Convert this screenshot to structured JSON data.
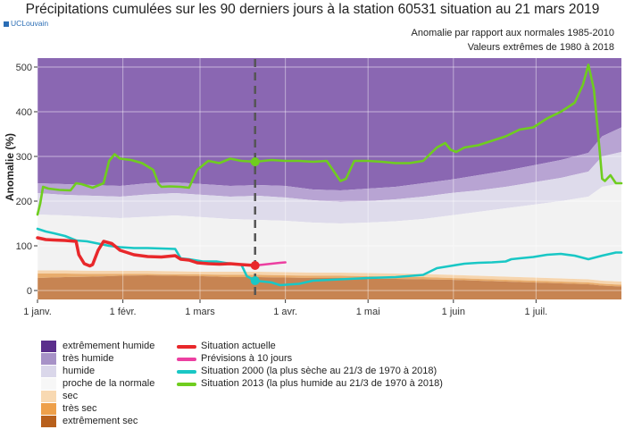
{
  "header": {
    "title": "Précipitations cumulées sur les 90 derniers jours à la station 60531 situation au 21 mars 2019",
    "logo": "UCLouvain",
    "subtitle1": "Anomalie par rapport aux normales 1985-2010",
    "subtitle2": "Valeurs extrêmes de 1980 à 2018"
  },
  "colors": {
    "extremement_humide": "#8a67b2",
    "tres_humide": "#b8a4d3",
    "humide": "#dedbeb",
    "proche": "#f2f2f2",
    "sec": "#f6d5ae",
    "tres_sec": "#e8ac6c",
    "extremement_sec": "#c78452",
    "actuelle": "#e8282b",
    "previsions": "#ec3fa1",
    "s2000": "#19c7c5",
    "s2013": "#6fcd1f",
    "marker_line": "#555555"
  },
  "legend": {
    "bands": [
      {
        "label": "extrêmement humide",
        "color": "#5b2f8c"
      },
      {
        "label": "très humide",
        "color": "#a792c7"
      },
      {
        "label": "humide",
        "color": "#dad7ea"
      },
      {
        "label": "proche de la normale",
        "color": "#f7f7f7"
      },
      {
        "label": "sec",
        "color": "#f8d9b2"
      },
      {
        "label": "très sec",
        "color": "#eea04a"
      },
      {
        "label": "extrêmement sec",
        "color": "#b8601c"
      }
    ],
    "lines": [
      {
        "label": "Situation actuelle",
        "color": "#e8282b"
      },
      {
        "label": "Prévisions à 10 jours",
        "color": "#ec3fa1"
      },
      {
        "label": "Situation 2000 (la plus sèche au 21/3 de 1970 à 2018)",
        "color": "#19c7c5"
      },
      {
        "label": "Situation 2013 (la plus humide au 21/3 de 1970 à 2018)",
        "color": "#6fcd1f"
      }
    ]
  },
  "chart_data": {
    "type": "line",
    "ylabel": "Anomalie (%)",
    "xlim": [
      0,
      212
    ],
    "ylim": [
      -20,
      530
    ],
    "y_ticks": [
      0,
      100,
      200,
      300,
      400,
      500
    ],
    "x_ticks": [
      {
        "day": 0,
        "label": "1 janv."
      },
      {
        "day": 31,
        "label": "1 févr."
      },
      {
        "day": 59,
        "label": "1 mars"
      },
      {
        "day": 90,
        "label": "1 avr."
      },
      {
        "day": 120,
        "label": "1 mai"
      },
      {
        "day": 151,
        "label": "1 juin"
      },
      {
        "day": 181,
        "label": "1 juil."
      }
    ],
    "current_day": 79,
    "bands": {
      "days": [
        0,
        10,
        20,
        30,
        40,
        50,
        60,
        70,
        80,
        90,
        100,
        110,
        120,
        130,
        140,
        150,
        160,
        170,
        180,
        190,
        200,
        205,
        212
      ],
      "max": [
        520,
        520,
        520,
        520,
        520,
        520,
        520,
        520,
        520,
        520,
        520,
        520,
        520,
        520,
        520,
        520,
        520,
        520,
        520,
        520,
        520,
        520,
        520
      ],
      "very_wet": [
        240,
        238,
        236,
        234,
        240,
        242,
        238,
        234,
        236,
        234,
        226,
        224,
        228,
        232,
        240,
        248,
        258,
        268,
        280,
        292,
        308,
        345,
        365
      ],
      "wet": [
        218,
        214,
        212,
        210,
        215,
        218,
        214,
        210,
        212,
        208,
        202,
        198,
        200,
        204,
        210,
        218,
        224,
        232,
        242,
        252,
        266,
        300,
        310
      ],
      "near": [
        170,
        168,
        165,
        162,
        165,
        168,
        164,
        160,
        158,
        156,
        152,
        150,
        152,
        155,
        160,
        168,
        176,
        184,
        192,
        200,
        210,
        232,
        240
      ],
      "dry": [
        45,
        45,
        44,
        44,
        44,
        43,
        42,
        42,
        42,
        41,
        40,
        40,
        39,
        38,
        37,
        35,
        33,
        31,
        29,
        27,
        25,
        22,
        20
      ],
      "very_dry": [
        38,
        38,
        37,
        37,
        37,
        36,
        36,
        35,
        35,
        34,
        33,
        33,
        32,
        31,
        30,
        28,
        26,
        24,
        22,
        20,
        18,
        15,
        13
      ],
      "extremely_dry": [
        28,
        30,
        31,
        33,
        34,
        33,
        32,
        30,
        30,
        29,
        28,
        28,
        27,
        26,
        25,
        24,
        22,
        20,
        18,
        16,
        14,
        11,
        9
      ]
    },
    "series": [
      {
        "name": "Situation actuelle",
        "x": [
          0,
          3,
          6,
          10,
          14,
          15,
          17,
          19,
          20,
          22,
          24,
          27,
          30,
          35,
          40,
          45,
          50,
          52,
          55,
          58,
          62,
          66,
          70,
          74,
          79
        ],
        "y": [
          118,
          114,
          113,
          112,
          110,
          80,
          60,
          55,
          58,
          90,
          110,
          105,
          90,
          80,
          76,
          75,
          78,
          70,
          68,
          62,
          60,
          59,
          60,
          58,
          56
        ]
      },
      {
        "name": "Prévisions à 10 jours",
        "x": [
          79,
          82,
          85,
          88,
          90
        ],
        "y": [
          56,
          58,
          60,
          62,
          63
        ]
      },
      {
        "name": "Situation 2000",
        "x": [
          0,
          3,
          6,
          10,
          14,
          18,
          22,
          26,
          30,
          35,
          40,
          45,
          50,
          52,
          55,
          60,
          65,
          70,
          74,
          76,
          79,
          85,
          88,
          95,
          100,
          110,
          120,
          130,
          140,
          145,
          150,
          155,
          160,
          165,
          170,
          172,
          175,
          180,
          185,
          190,
          195,
          200,
          205,
          210,
          212
        ],
        "y": [
          138,
          132,
          128,
          122,
          112,
          110,
          105,
          100,
          97,
          95,
          95,
          94,
          93,
          72,
          70,
          65,
          65,
          60,
          58,
          32,
          22,
          18,
          12,
          15,
          22,
          25,
          28,
          30,
          35,
          50,
          55,
          60,
          62,
          63,
          65,
          70,
          72,
          75,
          80,
          82,
          78,
          70,
          78,
          85,
          85
        ]
      },
      {
        "name": "Situation 2013",
        "x": [
          0,
          1,
          2,
          4,
          8,
          12,
          14,
          16,
          20,
          24,
          26,
          28,
          30,
          34,
          38,
          42,
          44,
          45,
          48,
          52,
          55,
          58,
          62,
          66,
          70,
          74,
          79,
          85,
          90,
          95,
          100,
          105,
          110,
          112,
          115,
          120,
          125,
          130,
          135,
          140,
          145,
          148,
          150,
          152,
          155,
          160,
          165,
          170,
          175,
          180,
          185,
          190,
          195,
          198,
          200,
          202,
          204,
          205,
          206,
          208,
          210,
          212
        ],
        "y": [
          170,
          195,
          232,
          228,
          225,
          224,
          240,
          238,
          230,
          240,
          290,
          305,
          295,
          292,
          285,
          270,
          238,
          232,
          233,
          232,
          230,
          270,
          290,
          285,
          295,
          290,
          288,
          292,
          290,
          290,
          288,
          290,
          245,
          250,
          290,
          290,
          288,
          285,
          285,
          290,
          320,
          330,
          315,
          310,
          320,
          325,
          335,
          345,
          360,
          365,
          385,
          400,
          420,
          460,
          505,
          450,
          320,
          250,
          245,
          258,
          240,
          240
        ]
      }
    ]
  }
}
